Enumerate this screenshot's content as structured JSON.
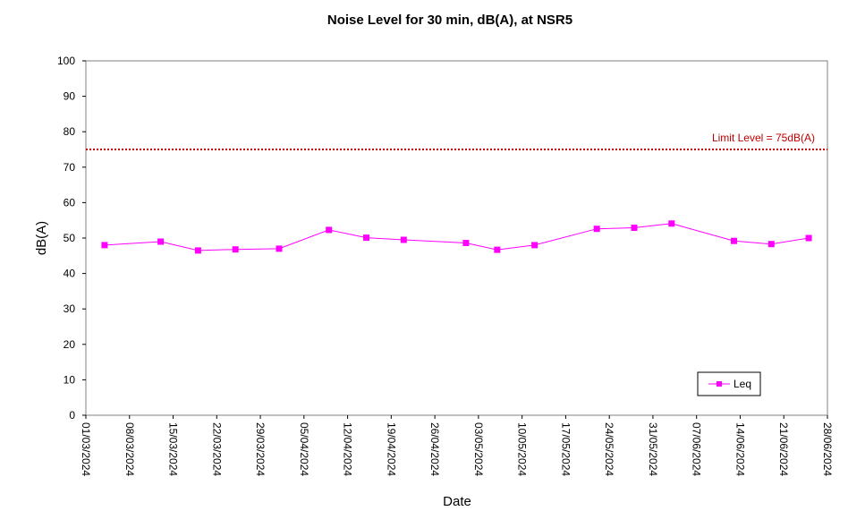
{
  "chart_data": {
    "type": "line",
    "title": "Noise Level for 30 min, dB(A), at NSR5",
    "xlabel": "Date",
    "ylabel": "dB(A)",
    "ylim": [
      0,
      100
    ],
    "yticks": [
      0,
      10,
      20,
      30,
      40,
      50,
      60,
      70,
      80,
      90,
      100
    ],
    "xlim": [
      "2024-03-01",
      "2024-06-28"
    ],
    "xtick_labels": [
      "01/03/2024",
      "08/03/2024",
      "15/03/2024",
      "22/03/2024",
      "29/03/2024",
      "05/04/2024",
      "12/04/2024",
      "19/04/2024",
      "26/04/2024",
      "03/05/2024",
      "10/05/2024",
      "17/05/2024",
      "24/05/2024",
      "31/05/2024",
      "07/06/2024",
      "14/06/2024",
      "21/06/2024",
      "28/06/2024"
    ],
    "grid": false,
    "series": [
      {
        "name": "Leq",
        "color": "#ff00ff",
        "marker": "square",
        "points": [
          {
            "x": "2024-03-04",
            "y": 48.0
          },
          {
            "x": "2024-03-13",
            "y": 49.0
          },
          {
            "x": "2024-03-19",
            "y": 46.5
          },
          {
            "x": "2024-03-25",
            "y": 46.8
          },
          {
            "x": "2024-04-01",
            "y": 47.0
          },
          {
            "x": "2024-04-09",
            "y": 52.3
          },
          {
            "x": "2024-04-15",
            "y": 50.1
          },
          {
            "x": "2024-04-21",
            "y": 49.5
          },
          {
            "x": "2024-05-01",
            "y": 48.6
          },
          {
            "x": "2024-05-06",
            "y": 46.7
          },
          {
            "x": "2024-05-12",
            "y": 48.0
          },
          {
            "x": "2024-05-22",
            "y": 52.6
          },
          {
            "x": "2024-05-28",
            "y": 52.9
          },
          {
            "x": "2024-06-03",
            "y": 54.1
          },
          {
            "x": "2024-06-13",
            "y": 49.2
          },
          {
            "x": "2024-06-19",
            "y": 48.3
          },
          {
            "x": "2024-06-25",
            "y": 50.0
          }
        ]
      }
    ],
    "reference_lines": [
      {
        "y": 75,
        "label": "Limit Level  = 75dB(A)",
        "color": "#c00000",
        "style": "dotted"
      }
    ],
    "legend": {
      "entries": [
        "Leq"
      ],
      "placement": "bottom-right"
    }
  }
}
